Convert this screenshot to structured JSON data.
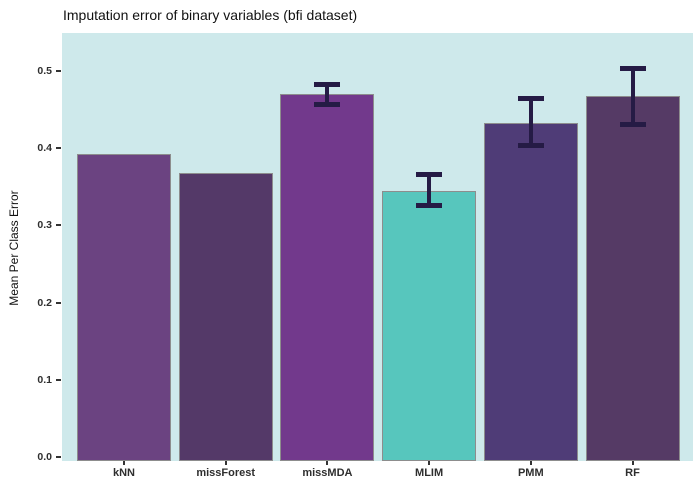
{
  "chart_data": {
    "type": "bar",
    "title": "Imputation error of binary variables (bfi dataset)",
    "xlabel": "",
    "ylabel": "Mean Per Class Error",
    "categories": [
      "kNN",
      "missForest",
      "missMDA",
      "MLIM",
      "PMM",
      "RF"
    ],
    "values": [
      0.393,
      0.368,
      0.47,
      0.345,
      0.432,
      0.467
    ],
    "error_bars": [
      null,
      null,
      {
        "low": 0.457,
        "high": 0.483
      },
      {
        "low": 0.326,
        "high": 0.366
      },
      {
        "low": 0.404,
        "high": 0.464
      },
      {
        "low": 0.431,
        "high": 0.503
      }
    ],
    "bar_colors": [
      "#6b4381",
      "#543968",
      "#72398c",
      "#57c6bd",
      "#4f3c77",
      "#553a65"
    ],
    "bar_border_color": "#8d8d8d",
    "error_bar_color": "#251b45",
    "panel_background": "#cee9eb",
    "outer_background": "#ffffff",
    "yticks": [
      0.0,
      0.1,
      0.2,
      0.3,
      0.4,
      0.5
    ],
    "ytick_labels": [
      "0.0",
      "0.1",
      "0.2",
      "0.3",
      "0.4",
      "0.5"
    ],
    "ylim": [
      0,
      0.55
    ],
    "grid": false,
    "legend": "none"
  }
}
